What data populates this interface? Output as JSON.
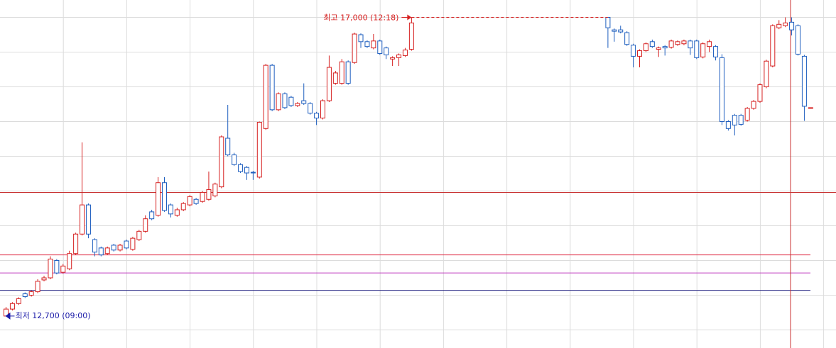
{
  "chart_data": {
    "type": "candlestick",
    "up_color": "#d62020",
    "down_color": "#1f5fbf",
    "ylim": [
      12250,
      17250
    ],
    "yticks": [
      12500,
      13000,
      13500,
      14000,
      14500,
      15000,
      15500,
      16000,
      16500,
      17000
    ],
    "grid": true,
    "open": [
      12700,
      12800,
      12880,
      13020,
      13000,
      13050,
      13220,
      13250,
      13500,
      13330,
      13380,
      13600,
      13880,
      14300,
      13800,
      13680,
      13600,
      13720,
      13650,
      13780,
      13660,
      13800,
      13920,
      14200,
      14150,
      14620,
      14300,
      14150,
      14230,
      14300,
      14380,
      14350,
      14380,
      14430,
      14560,
      15260,
      15020,
      14880,
      14840,
      14770,
      14700,
      15400,
      16310,
      15670,
      15900,
      15850,
      15730,
      15800,
      15760,
      15620,
      15550,
      15800,
      16050,
      16050,
      16360,
      16350,
      16750,
      16650,
      16560,
      16660,
      16560,
      16400,
      16420,
      16450,
      16540,
      null,
      null,
      null,
      null,
      null,
      null,
      null,
      null,
      null,
      null,
      null,
      null,
      null,
      null,
      null,
      null,
      null,
      null,
      null,
      null,
      null,
      null,
      null,
      null,
      null,
      null,
      null,
      null,
      null,
      null,
      17000,
      16820,
      16820,
      16780,
      16600,
      16440,
      16520,
      16650,
      16540,
      16580,
      16570,
      16610,
      16620,
      16660,
      16660,
      16430,
      16580,
      16580,
      16420,
      15500,
      15590,
      15590,
      15520,
      15690,
      15790,
      16000,
      16300,
      16850,
      16880,
      16930,
      16880,
      16440,
      15690
    ],
    "high": [
      12830,
      12900,
      12970,
      13040,
      13070,
      13230,
      13280,
      13560,
      13520,
      13450,
      13640,
      13900,
      15200,
      14320,
      13820,
      13700,
      13700,
      13740,
      13740,
      13800,
      13840,
      13940,
      14150,
      14230,
      14700,
      14700,
      14320,
      14260,
      14340,
      14440,
      14400,
      14500,
      14780,
      14620,
      15300,
      15740,
      15050,
      14900,
      14860,
      14790,
      15500,
      16330,
      16330,
      15920,
      15920,
      15870,
      15780,
      16050,
      15780,
      15640,
      15820,
      16450,
      16230,
      16400,
      16380,
      16780,
      16770,
      16670,
      16760,
      16680,
      16580,
      16440,
      16480,
      16560,
      17000,
      null,
      null,
      null,
      null,
      null,
      null,
      null,
      null,
      null,
      null,
      null,
      null,
      null,
      null,
      null,
      null,
      null,
      null,
      null,
      null,
      null,
      null,
      null,
      null,
      null,
      null,
      null,
      null,
      null,
      null,
      17000,
      16840,
      16880,
      16800,
      16620,
      16540,
      16640,
      16680,
      16580,
      16600,
      16680,
      16670,
      16680,
      16680,
      16680,
      16640,
      16680,
      16600,
      16470,
      15520,
      15610,
      15610,
      15710,
      15810,
      16050,
      16390,
      16900,
      16960,
      17000,
      17000,
      16900,
      16460,
      15700
    ],
    "low": [
      12700,
      12780,
      12860,
      12960,
      12980,
      13030,
      13200,
      13230,
      13300,
      13310,
      13360,
      13580,
      13860,
      13820,
      13560,
      13560,
      13580,
      13630,
      13630,
      13660,
      13640,
      13780,
      13900,
      14080,
      14130,
      14200,
      14120,
      14130,
      14210,
      14280,
      14300,
      14330,
      14360,
      14410,
      14540,
      15000,
      14860,
      14760,
      14660,
      14660,
      14680,
      15380,
      15650,
      15650,
      15680,
      15710,
      15710,
      15740,
      15600,
      15450,
      15530,
      15780,
      16030,
      16030,
      16030,
      16330,
      16560,
      16560,
      16540,
      16460,
      16400,
      16300,
      16300,
      16430,
      16520,
      null,
      null,
      null,
      null,
      null,
      null,
      null,
      null,
      null,
      null,
      null,
      null,
      null,
      null,
      null,
      null,
      null,
      null,
      null,
      null,
      null,
      null,
      null,
      null,
      null,
      null,
      null,
      null,
      null,
      null,
      16560,
      16650,
      16770,
      16590,
      16280,
      16280,
      16500,
      16560,
      16430,
      16450,
      16550,
      16590,
      16600,
      16460,
      16400,
      16410,
      16500,
      16380,
      15450,
      15370,
      15300,
      15440,
      15500,
      15670,
      15770,
      15980,
      16280,
      16830,
      16860,
      16740,
      16450,
      15510,
      15690
    ],
    "close": [
      12800,
      12880,
      12950,
      12980,
      13050,
      13200,
      13250,
      13520,
      13320,
      13420,
      13600,
      13880,
      14300,
      13880,
      13620,
      13580,
      13680,
      13650,
      13720,
      13680,
      13820,
      13920,
      14100,
      14100,
      14620,
      14220,
      14170,
      14230,
      14320,
      14420,
      14320,
      14480,
      14520,
      14600,
      15280,
      15020,
      14880,
      14780,
      14760,
      14760,
      15490,
      16310,
      15670,
      15900,
      15700,
      15730,
      15760,
      15760,
      15620,
      15550,
      15800,
      16280,
      16200,
      16360,
      16050,
      16760,
      16650,
      16580,
      16660,
      16480,
      16460,
      16420,
      16460,
      16530,
      16920,
      null,
      null,
      null,
      null,
      null,
      null,
      null,
      null,
      null,
      null,
      null,
      null,
      null,
      null,
      null,
      null,
      null,
      null,
      null,
      null,
      null,
      null,
      null,
      null,
      null,
      null,
      null,
      null,
      null,
      null,
      16850,
      16800,
      16790,
      16610,
      16440,
      16520,
      16620,
      16580,
      16560,
      16560,
      16660,
      16650,
      16660,
      16560,
      16420,
      16620,
      16650,
      16430,
      15500,
      15400,
      15450,
      15460,
      15690,
      15790,
      16030,
      16370,
      16880,
      16900,
      16920,
      16820,
      16470,
      15720,
      15700
    ],
    "reference_lines": [
      {
        "value": 13580,
        "color": "#e0304a"
      },
      {
        "value": 13320,
        "color": "#c040c0"
      },
      {
        "value": 13070,
        "color": "#202080"
      }
    ],
    "crosshair": {
      "value": 14480,
      "color": "#c83030"
    },
    "annotations": [
      {
        "text": "최고 17,000 (12:18)",
        "color": "#d62020"
      },
      {
        "text": "최저 12,700 (09:00)",
        "color": "#1a1aa8"
      }
    ]
  }
}
